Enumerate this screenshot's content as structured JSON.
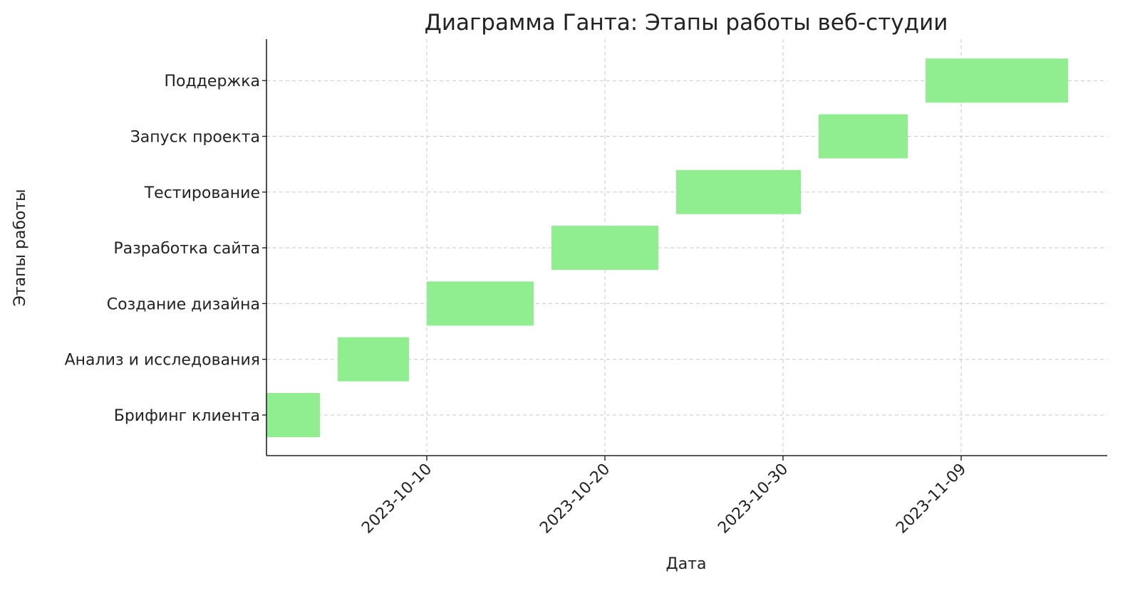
{
  "chart_data": {
    "type": "bar",
    "orientation": "gantt-horizontal",
    "title": "Диаграмма Ганта: Этапы работы веб-студии",
    "xlabel": "Дата",
    "ylabel": "Этапы работы",
    "xlim": [
      "2023-10-01",
      "2023-11-17"
    ],
    "xticks": [
      "2023-10-10",
      "2023-10-20",
      "2023-10-30",
      "2023-11-09"
    ],
    "grid": true,
    "bar_color": "#90ee90",
    "tasks": [
      {
        "name": "Брифинг клиента",
        "start": "2023-10-01",
        "end": "2023-10-04"
      },
      {
        "name": "Анализ и исследования",
        "start": "2023-10-05",
        "end": "2023-10-09"
      },
      {
        "name": "Создание дизайна",
        "start": "2023-10-10",
        "end": "2023-10-16"
      },
      {
        "name": "Разработка сайта",
        "start": "2023-10-17",
        "end": "2023-10-23"
      },
      {
        "name": "Тестирование",
        "start": "2023-10-24",
        "end": "2023-10-31"
      },
      {
        "name": "Запуск проекта",
        "start": "2023-11-01",
        "end": "2023-11-06"
      },
      {
        "name": "Поддержка",
        "start": "2023-11-07",
        "end": "2023-11-15"
      }
    ]
  }
}
